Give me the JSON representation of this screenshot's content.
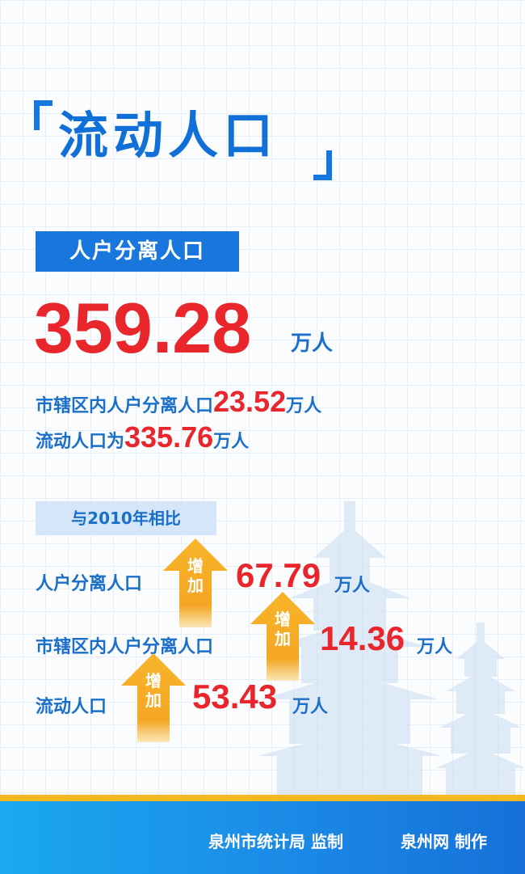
{
  "title": "流动人口",
  "section_banner": "人户分离人口",
  "total": {
    "value": "359.28",
    "unit": "万人"
  },
  "detail_lines": [
    {
      "label": "市辖区内人户分离人口",
      "value": "23.52",
      "unit": "万人"
    },
    {
      "label": "流动人口为",
      "value": "335.76",
      "unit": "万人"
    }
  ],
  "comparison": {
    "banner": "与2010年相比",
    "increase_label": "增加",
    "rows": [
      {
        "label": "人户分离人口",
        "value": "67.79",
        "unit": "万人"
      },
      {
        "label": "市辖区内人户分离人口",
        "value": "14.36",
        "unit": "万人"
      },
      {
        "label": "流动人口",
        "value": "53.43",
        "unit": "万人"
      }
    ]
  },
  "footer": {
    "supervisor": "泉州市统计局 监制",
    "producer": "泉州网 制作"
  },
  "colors": {
    "brand_blue": "#1876dc",
    "highlight_red": "#e8262c",
    "arrow_orange": "#f5a623",
    "footer_stripe": "#f5b821"
  },
  "icons": [
    "up-arrow-icon",
    "pagoda-illustration"
  ]
}
